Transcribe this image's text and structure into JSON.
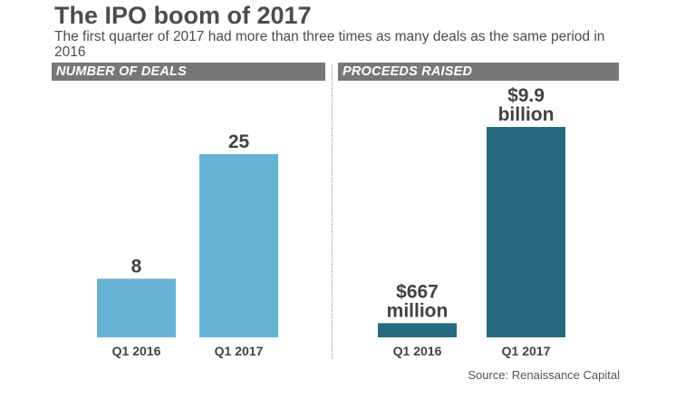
{
  "title": "The IPO boom of 2017",
  "subtitle": "The first quarter of 2017 had more than three times as many deals as the same period in 2016",
  "source": "Source: Renaissance Capital",
  "colors": {
    "deals": "#66b2d2",
    "proceeds": "#256a7f",
    "header_bg": "#757779",
    "text": "#4a4d50"
  },
  "chart_data": [
    {
      "type": "bar",
      "title": "NUMBER OF DEALS",
      "categories": [
        "Q1 2016",
        "Q1 2017"
      ],
      "values": [
        8,
        25
      ],
      "data_labels": [
        [
          "8"
        ],
        [
          "25"
        ]
      ]
    },
    {
      "type": "bar",
      "title": "PROCEEDS RAISED",
      "categories": [
        "Q1 2016",
        "Q1 2017"
      ],
      "values": [
        667,
        9900
      ],
      "unit": "million USD",
      "data_labels": [
        [
          "$667",
          "million"
        ],
        [
          "$9.9",
          "billion"
        ]
      ]
    }
  ]
}
